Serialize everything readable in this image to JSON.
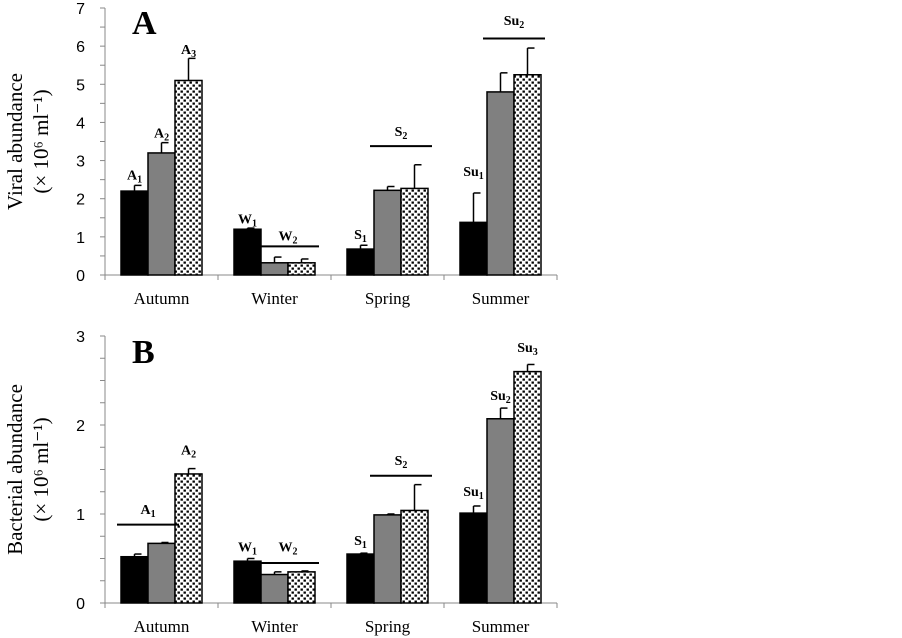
{
  "chart_data": [
    {
      "type": "bar",
      "panel_label": "A",
      "ylabel_line1": "Viral abundance",
      "ylabel_line2": "(× 10⁶ ml⁻¹)",
      "categories": [
        "Autumn",
        "Winter",
        "Spring",
        "Summer"
      ],
      "ylim": [
        0,
        7
      ],
      "yticks": [
        0,
        1,
        2,
        3,
        4,
        5,
        6,
        7
      ],
      "minor_tick_step": 0.5,
      "series": [
        {
          "name": "series-1",
          "color": "#000000",
          "values": [
            2.2,
            1.2,
            0.68,
            1.38
          ],
          "errors": [
            0.15,
            0.03,
            0.1,
            0.77
          ]
        },
        {
          "name": "series-2",
          "color": "#808080",
          "values": [
            3.2,
            0.32,
            2.22,
            4.8
          ],
          "errors": [
            0.27,
            0.15,
            0.1,
            0.5
          ]
        },
        {
          "name": "series-3",
          "color": "dotted",
          "values": [
            5.1,
            0.32,
            2.27,
            5.25
          ],
          "errors": [
            0.58,
            0.1,
            0.62,
            0.7
          ]
        }
      ],
      "annotations": [
        {
          "text": "A",
          "sub": "1",
          "category": 0,
          "bars": [
            0,
            0
          ],
          "y": 2.5,
          "line": false
        },
        {
          "text": "A",
          "sub": "2",
          "category": 0,
          "bars": [
            1,
            1
          ],
          "y": 3.6,
          "line": false
        },
        {
          "text": "A",
          "sub": "3",
          "category": 0,
          "bars": [
            2,
            2
          ],
          "y": 5.8,
          "line": false
        },
        {
          "text": "W",
          "sub": "1",
          "category": 1,
          "bars": [
            0,
            0
          ],
          "y": 1.35,
          "line": false
        },
        {
          "text": "W",
          "sub": "2",
          "category": 1,
          "bars": [
            1,
            2
          ],
          "y": 0.9,
          "line": true,
          "line_y": 0.75
        },
        {
          "text": "S",
          "sub": "1",
          "category": 2,
          "bars": [
            0,
            0
          ],
          "y": 0.95,
          "line": false
        },
        {
          "text": "S",
          "sub": "2",
          "category": 2,
          "bars": [
            1,
            2
          ],
          "y": 3.65,
          "line": true,
          "line_y": 3.38
        },
        {
          "text": "Su",
          "sub": "1",
          "category": 3,
          "bars": [
            0,
            0
          ],
          "y": 2.6,
          "line": false
        },
        {
          "text": "Su",
          "sub": "2",
          "category": 3,
          "bars": [
            1,
            2
          ],
          "y": 6.55,
          "line": true,
          "line_y": 6.2
        }
      ]
    },
    {
      "type": "bar",
      "panel_label": "B",
      "ylabel_line1": "Bacterial abundance",
      "ylabel_line2": "(× 10⁶ ml⁻¹)",
      "categories": [
        "Autumn",
        "Winter",
        "Spring",
        "Summer"
      ],
      "ylim": [
        0,
        3
      ],
      "yticks": [
        0,
        1,
        2,
        3
      ],
      "minor_tick_step": 0.25,
      "series": [
        {
          "name": "series-1",
          "color": "#000000",
          "values": [
            0.52,
            0.47,
            0.55,
            1.01
          ],
          "errors": [
            0.03,
            0.03,
            0.01,
            0.08
          ]
        },
        {
          "name": "series-2",
          "color": "#808080",
          "values": [
            0.67,
            0.32,
            0.99,
            2.07
          ],
          "errors": [
            0.01,
            0.03,
            0.01,
            0.12
          ]
        },
        {
          "name": "series-3",
          "color": "dotted",
          "values": [
            1.45,
            0.35,
            1.04,
            2.6
          ],
          "errors": [
            0.06,
            0.01,
            0.29,
            0.08
          ]
        }
      ],
      "annotations": [
        {
          "text": "A",
          "sub": "1",
          "category": 0,
          "bars": [
            0,
            1
          ],
          "y": 1.0,
          "line": true,
          "line_y": 0.88
        },
        {
          "text": "A",
          "sub": "2",
          "category": 0,
          "bars": [
            2,
            2
          ],
          "y": 1.67,
          "line": false
        },
        {
          "text": "W",
          "sub": "1",
          "category": 1,
          "bars": [
            0,
            0
          ],
          "y": 0.58,
          "line": false
        },
        {
          "text": "W",
          "sub": "2",
          "category": 1,
          "bars": [
            1,
            2
          ],
          "y": 0.58,
          "line": true,
          "line_y": 0.45
        },
        {
          "text": "S",
          "sub": "1",
          "category": 2,
          "bars": [
            0,
            0
          ],
          "y": 0.65,
          "line": false
        },
        {
          "text": "S",
          "sub": "2",
          "category": 2,
          "bars": [
            1,
            2
          ],
          "y": 1.55,
          "line": true,
          "line_y": 1.43
        },
        {
          "text": "Su",
          "sub": "1",
          "category": 3,
          "bars": [
            0,
            0
          ],
          "y": 1.2,
          "line": false
        },
        {
          "text": "Su",
          "sub": "2",
          "category": 3,
          "bars": [
            1,
            1
          ],
          "y": 2.28,
          "line": false
        },
        {
          "text": "Su",
          "sub": "3",
          "category": 3,
          "bars": [
            2,
            2
          ],
          "y": 2.82,
          "line": false
        }
      ]
    }
  ]
}
